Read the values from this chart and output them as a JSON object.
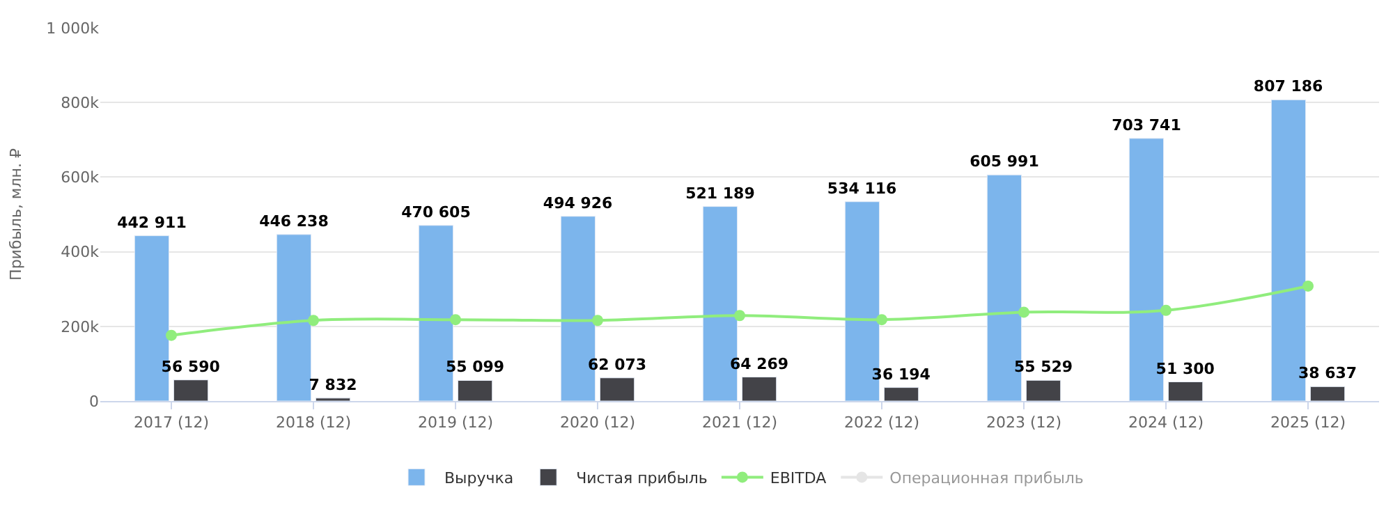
{
  "chart_data": {
    "type": "bar",
    "ylabel": "Прибыль, млн. ₽",
    "categories": [
      "2017 (12)",
      "2018 (12)",
      "2019 (12)",
      "2020 (12)",
      "2021 (12)",
      "2022 (12)",
      "2023 (12)",
      "2024 (12)",
      "2025 (12)"
    ],
    "series": [
      {
        "name": "Выручка",
        "color": "#7cb5ec",
        "values": [
          442911,
          446238,
          470605,
          494926,
          521189,
          534116,
          605991,
          703741,
          807186
        ],
        "value_labels": [
          "442 911",
          "446 238",
          "470 605",
          "494 926",
          "521 189",
          "534 116",
          "605 991",
          "703 741",
          "807 186"
        ]
      },
      {
        "name": "Чистая прибыль",
        "color": "#434348",
        "values": [
          56590,
          7832,
          55099,
          62073,
          64269,
          36194,
          55529,
          51300,
          38637
        ],
        "value_labels": [
          "56 590",
          "7 832",
          "55 099",
          "62 073",
          "64 269",
          "36 194",
          "55 529",
          "51 300",
          "38 637"
        ]
      },
      {
        "name": "EBITDA",
        "type": "line",
        "color": "#90ed7d",
        "values": [
          176000,
          216000,
          218000,
          216000,
          229000,
          218000,
          238000,
          243000,
          308000
        ]
      },
      {
        "name": "Операционная прибыль",
        "type": "line",
        "color": "#cccccc",
        "values": [
          null,
          null,
          null,
          null,
          null,
          null,
          null,
          null,
          null
        ]
      }
    ],
    "ylim": [
      0,
      1000000
    ],
    "yticks": [
      {
        "value": 0,
        "label": "0"
      },
      {
        "value": 200000,
        "label": "200k"
      },
      {
        "value": 400000,
        "label": "400k"
      },
      {
        "value": 600000,
        "label": "600k"
      },
      {
        "value": 800000,
        "label": "800k"
      },
      {
        "value": 1000000,
        "label": "1 000k"
      }
    ],
    "grid": "y",
    "legend": "bottom",
    "marker": "circle"
  }
}
